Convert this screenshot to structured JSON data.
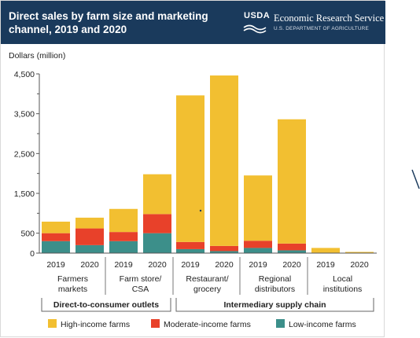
{
  "header": {
    "title": "Direct sales by farm size and marketing channel, 2019 and 2020",
    "logo_text": "USDA",
    "agency": "Economic Research Service",
    "department": "U.S. DEPARTMENT OF AGRICULTURE",
    "background": "#1a3a5c"
  },
  "colors": {
    "high": "#f2bf31",
    "moderate": "#e8412a",
    "low": "#3c8f8a"
  },
  "chart_data": {
    "type": "bar",
    "stacked": true,
    "ylabel": "Dollars (million)",
    "ylim": [
      0,
      4500
    ],
    "yticks": [
      0,
      500,
      1500,
      2500,
      3500,
      4500
    ],
    "yticks_minor": [
      1000,
      2000,
      3000,
      4000
    ],
    "grid": false,
    "categories": [
      "Farmers markets 2019",
      "Farmers markets 2020",
      "Farm store/CSA 2019",
      "Farm store/CSA 2020",
      "Restaurant/grocery 2019",
      "Restaurant/grocery 2020",
      "Regional distributors 2019",
      "Regional distributors 2020",
      "Local institutions 2019",
      "Local institutions 2020"
    ],
    "year_labels": [
      "2019",
      "2020",
      "2019",
      "2020",
      "2019",
      "2020",
      "2019",
      "2020",
      "2019",
      "2020"
    ],
    "group_labels": [
      [
        "Farmers",
        "markets"
      ],
      [
        "Farm store/",
        "CSA"
      ],
      [
        "Restaurant/",
        "grocery"
      ],
      [
        "Regional",
        "distributors"
      ],
      [
        "Local",
        "institutions"
      ]
    ],
    "supergroups": [
      "Direct-to-consumer outlets",
      "Intermediary supply chain"
    ],
    "series": [
      {
        "name": "Low-income farms",
        "values": [
          300,
          200,
          300,
          500,
          100,
          50,
          130,
          70,
          5,
          5
        ]
      },
      {
        "name": "Moderate-income farms",
        "values": [
          200,
          420,
          230,
          480,
          180,
          130,
          180,
          170,
          5,
          5
        ]
      },
      {
        "name": "High-income farms",
        "values": [
          290,
          270,
          580,
          1000,
          3680,
          4280,
          1640,
          3120,
          120,
          20
        ]
      }
    ],
    "legend": [
      "High-income farms",
      "Moderate-income farms",
      "Low-income farms"
    ],
    "legend_position": "bottom"
  }
}
